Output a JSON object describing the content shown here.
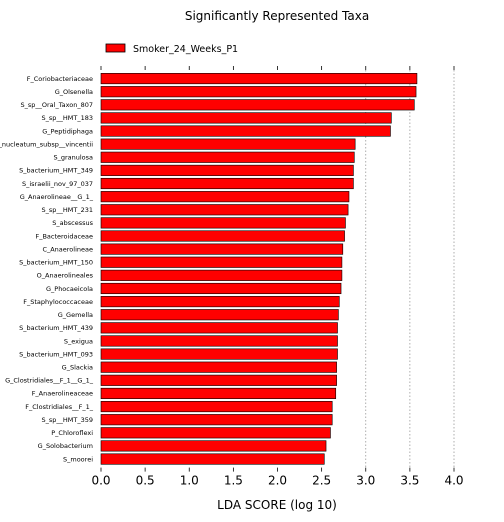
{
  "chart_data": {
    "type": "bar",
    "orientation": "horizontal",
    "title": "Significantly Represented Taxa",
    "xlabel": "LDA SCORE (log 10)",
    "ylabel": "",
    "xlim": [
      0.0,
      4.0
    ],
    "xticks": [
      "0.0",
      "0.5",
      "1.0",
      "1.5",
      "2.0",
      "2.5",
      "3.0",
      "3.5",
      "4.0"
    ],
    "grid": "vertical dotted at 3.0, 3.5, 4.0",
    "legend": {
      "position": "top-left",
      "entries": [
        "Smoker_24_Weeks_P1"
      ]
    },
    "bar_color": "#ff0000",
    "series": [
      {
        "name": "Smoker_24_Weeks_P1",
        "categories": [
          "F_Coriobacteriaceae",
          "G_Olsenella",
          "S_sp__Oral_Taxon_807",
          "S_sp__HMT_183",
          "G_Peptidiphaga",
          "S_nucleatum_subsp__vincentii",
          "S_granulosa",
          "S_bacterium_HMT_349",
          "S_israelii_nov_97_037",
          "G_Anaerolineae__G_1_",
          "S_sp__HMT_231",
          "S_abscessus",
          "F_Bacteroidaceae",
          "C_Anaerolineae",
          "S_bacterium_HMT_150",
          "O_Anaerolineales",
          "G_Phocaeicola",
          "F_Staphylococcaceae",
          "G_Gemella",
          "S_bacterium_HMT_439",
          "S_exigua",
          "S_bacterium_HMT_093",
          "G_Slackia",
          "G_Clostridiales__F_1__G_1_",
          "F_Anaerolineaceae",
          "F_Clostridiales__F_1_",
          "S_sp__HMT_359",
          "P_Chloroflexi",
          "G_Solobacterium",
          "S_moorei"
        ],
        "values": [
          3.58,
          3.57,
          3.55,
          3.29,
          3.28,
          2.88,
          2.87,
          2.86,
          2.86,
          2.81,
          2.8,
          2.77,
          2.76,
          2.74,
          2.73,
          2.73,
          2.72,
          2.7,
          2.69,
          2.68,
          2.68,
          2.68,
          2.67,
          2.67,
          2.66,
          2.62,
          2.62,
          2.6,
          2.55,
          2.53
        ]
      }
    ]
  }
}
